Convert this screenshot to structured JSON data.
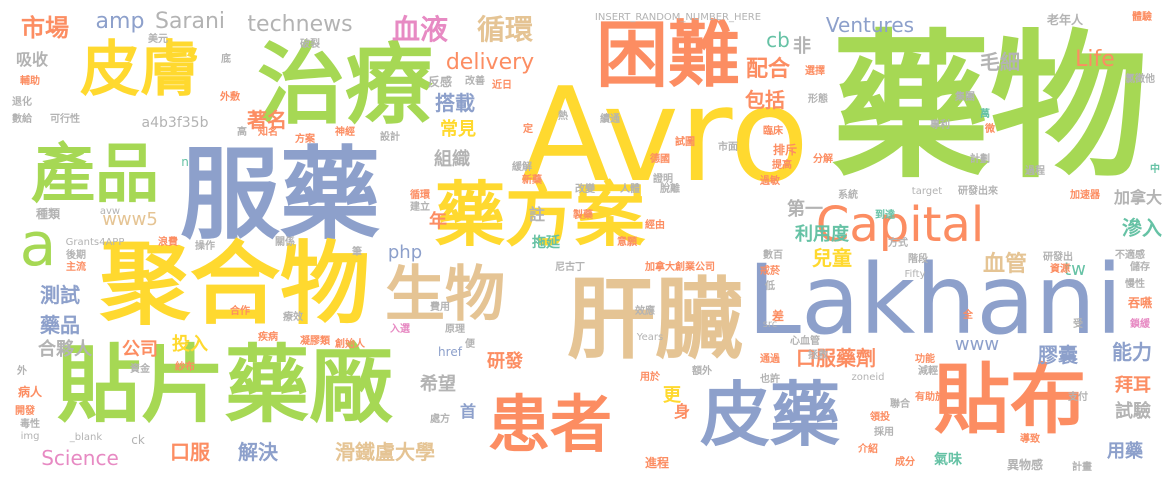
{
  "palette": {
    "green": "#a6d854",
    "orange": "#fc8d62",
    "yellow": "#ffd92f",
    "blue": "#8da0cb",
    "tan": "#e5c494",
    "pink": "#e78ac3",
    "teal": "#66c2a5",
    "gray": "#b3b3b3"
  },
  "words": [
    {
      "text": "藥物",
      "color": "green",
      "emphasis": 1.0
    },
    {
      "text": "Avro",
      "color": "yellow",
      "emphasis": 0.9
    },
    {
      "text": "Lakhani",
      "color": "blue",
      "emphasis": 0.85
    },
    {
      "text": "服藥",
      "color": "blue",
      "emphasis": 0.85
    },
    {
      "text": "聚合物",
      "color": "yellow",
      "emphasis": 0.85
    },
    {
      "text": "治療",
      "color": "green",
      "emphasis": 0.8
    },
    {
      "text": "貼片藥廠",
      "color": "green",
      "emphasis": 0.8
    },
    {
      "text": "肝臟",
      "color": "tan",
      "emphasis": 0.8
    },
    {
      "text": "藥方案",
      "color": "yellow",
      "emphasis": 0.8
    },
    {
      "text": "困難",
      "color": "orange",
      "emphasis": 0.7
    },
    {
      "text": "貼布",
      "color": "orange",
      "emphasis": 0.75
    },
    {
      "text": "皮藥",
      "color": "blue",
      "emphasis": 0.7
    },
    {
      "text": "皮膚",
      "color": "yellow",
      "emphasis": 0.7
    },
    {
      "text": "產品",
      "color": "green",
      "emphasis": 0.7
    },
    {
      "text": "患者",
      "color": "orange",
      "emphasis": 0.7
    },
    {
      "text": "生物",
      "color": "tan",
      "emphasis": 0.7
    },
    {
      "text": "Capital",
      "color": "orange",
      "emphasis": 0.55
    },
    {
      "text": "a",
      "color": "green",
      "emphasis": 0.6
    },
    {
      "text": "血液",
      "color": "pink",
      "emphasis": 0.3
    },
    {
      "text": "循環",
      "color": "tan",
      "emphasis": 0.3
    },
    {
      "text": "市場",
      "color": "orange",
      "emphasis": 0.2
    },
    {
      "text": "amp",
      "color": "blue",
      "emphasis": 0.2
    },
    {
      "text": "Sarani",
      "color": "gray",
      "emphasis": 0.2
    },
    {
      "text": "technews",
      "color": "gray",
      "emphasis": 0.2
    },
    {
      "text": "delivery",
      "color": "orange",
      "emphasis": 0.2
    },
    {
      "text": "cb",
      "color": "teal",
      "emphasis": 0.15
    },
    {
      "text": "非",
      "color": "gray",
      "emphasis": 0.15
    },
    {
      "text": "配合",
      "color": "orange",
      "emphasis": 0.15
    },
    {
      "text": "Ventures",
      "color": "blue",
      "emphasis": 0.2
    },
    {
      "text": "毛細",
      "color": "gray",
      "emphasis": 0.15
    },
    {
      "text": "Life",
      "color": "orange",
      "emphasis": 0.2
    },
    {
      "text": "包括",
      "color": "orange",
      "emphasis": 0.15
    },
    {
      "text": "搭載",
      "color": "blue",
      "emphasis": 0.15
    },
    {
      "text": "常見",
      "color": "yellow",
      "emphasis": 0.15
    },
    {
      "text": "組織",
      "color": "gray",
      "emphasis": 0.15
    },
    {
      "text": "著名",
      "color": "orange",
      "emphasis": 0.15
    },
    {
      "text": "a4b3f35b",
      "color": "gray",
      "emphasis": 0.1
    },
    {
      "text": "第一",
      "color": "gray",
      "emphasis": 0.15
    },
    {
      "text": "利用度",
      "color": "teal",
      "emphasis": 0.15
    },
    {
      "text": "兒童",
      "color": "yellow",
      "emphasis": 0.15
    },
    {
      "text": "加拿大",
      "color": "gray",
      "emphasis": 0.15
    },
    {
      "text": "滲入",
      "color": "teal",
      "emphasis": 0.15
    },
    {
      "text": "血管",
      "color": "tan",
      "emphasis": 0.15
    },
    {
      "text": "tw",
      "color": "teal",
      "emphasis": 0.15
    },
    {
      "text": "www5",
      "color": "tan",
      "emphasis": 0.15
    },
    {
      "text": "php",
      "color": "blue",
      "emphasis": 0.15
    },
    {
      "text": "年",
      "color": "orange",
      "emphasis": 0.15
    },
    {
      "text": "註",
      "color": "gray",
      "emphasis": 0.15
    },
    {
      "text": "拖延",
      "color": "teal",
      "emphasis": 0.15
    },
    {
      "text": "吸收",
      "color": "gray",
      "emphasis": 0.15
    },
    {
      "text": "測試",
      "color": "blue",
      "emphasis": 0.15
    },
    {
      "text": "藥品",
      "color": "blue",
      "emphasis": 0.15
    },
    {
      "text": "合夥人",
      "color": "gray",
      "emphasis": 0.15
    },
    {
      "text": "公司",
      "color": "orange",
      "emphasis": 0.15
    },
    {
      "text": "投入",
      "color": "yellow",
      "emphasis": 0.15
    },
    {
      "text": "研發",
      "color": "orange",
      "emphasis": 0.15
    },
    {
      "text": "希望",
      "color": "gray",
      "emphasis": 0.15
    },
    {
      "text": "www",
      "color": "blue",
      "emphasis": 0.15
    },
    {
      "text": "口服藥劑",
      "color": "orange",
      "emphasis": 0.15
    },
    {
      "text": "膠囊",
      "color": "blue",
      "emphasis": 0.15
    },
    {
      "text": "能力",
      "color": "blue",
      "emphasis": 0.15
    },
    {
      "text": "拜耳",
      "color": "orange",
      "emphasis": 0.15
    },
    {
      "text": "試驗",
      "color": "gray",
      "emphasis": 0.15
    },
    {
      "text": "更",
      "color": "yellow",
      "emphasis": 0.15
    },
    {
      "text": "身",
      "color": "orange",
      "emphasis": 0.15
    },
    {
      "text": "首",
      "color": "blue",
      "emphasis": 0.15
    },
    {
      "text": "Science",
      "color": "pink",
      "emphasis": 0.15
    },
    {
      "text": "口服",
      "color": "orange",
      "emphasis": 0.15
    },
    {
      "text": "解決",
      "color": "blue",
      "emphasis": 0.15
    },
    {
      "text": "滑鐵盧大學",
      "color": "tan",
      "emphasis": 0.15
    },
    {
      "text": "用藥",
      "color": "blue",
      "emphasis": 0.15
    },
    {
      "text": "INSERT_RANDOM_NUMBER_HERE",
      "color": "gray",
      "emphasis": 0.05
    },
    {
      "text": "老年人",
      "color": "gray",
      "emphasis": 0.05
    },
    {
      "text": "體驗",
      "color": "orange",
      "emphasis": 0.05
    },
    {
      "text": "氯徵他",
      "color": "gray",
      "emphasis": 0.05
    },
    {
      "text": "選擇",
      "color": "orange",
      "emphasis": 0.05
    },
    {
      "text": "形態",
      "color": "gray",
      "emphasis": 0.05
    },
    {
      "text": "集團",
      "color": "gray",
      "emphasis": 0.05
    },
    {
      "text": "萬",
      "color": "teal",
      "emphasis": 0.05
    },
    {
      "text": "微",
      "color": "orange",
      "emphasis": 0.05
    },
    {
      "text": "專利",
      "color": "gray",
      "emphasis": 0.05
    },
    {
      "text": "臨床",
      "color": "orange",
      "emphasis": 0.05
    },
    {
      "text": "試圖",
      "color": "orange",
      "emphasis": 0.05
    },
    {
      "text": "德國",
      "color": "orange",
      "emphasis": 0.05
    },
    {
      "text": "證明",
      "color": "gray",
      "emphasis": 0.05
    },
    {
      "text": "市面",
      "color": "gray",
      "emphasis": 0.05
    },
    {
      "text": "排斥",
      "color": "orange",
      "emphasis": 0.05
    },
    {
      "text": "提高",
      "color": "orange",
      "emphasis": 0.05
    },
    {
      "text": "過敏",
      "color": "orange",
      "emphasis": 0.05
    },
    {
      "text": "分解",
      "color": "orange",
      "emphasis": 0.05
    },
    {
      "text": "計劃",
      "color": "gray",
      "emphasis": 0.05
    },
    {
      "text": "過程",
      "color": "gray",
      "emphasis": 0.05
    },
    {
      "text": "系統",
      "color": "gray",
      "emphasis": 0.05
    },
    {
      "text": "中",
      "color": "teal",
      "emphasis": 0.05
    },
    {
      "text": "加速器",
      "color": "orange",
      "emphasis": 0.05
    },
    {
      "text": "target",
      "color": "gray",
      "emphasis": 0.05
    },
    {
      "text": "研發出來",
      "color": "gray",
      "emphasis": 0.05
    },
    {
      "text": "到達",
      "color": "teal",
      "emphasis": 0.05
    },
    {
      "text": "方式",
      "color": "gray",
      "emphasis": 0.05
    },
    {
      "text": "不適感",
      "color": "gray",
      "emphasis": 0.05
    },
    {
      "text": "研發出",
      "color": "gray",
      "emphasis": 0.05
    },
    {
      "text": "資源",
      "color": "orange",
      "emphasis": 0.05
    },
    {
      "text": "慢性",
      "color": "gray",
      "emphasis": 0.05
    },
    {
      "text": "儲存",
      "color": "gray",
      "emphasis": 0.05
    },
    {
      "text": "吞嚥",
      "color": "orange",
      "emphasis": 0.05
    },
    {
      "text": "鎖緩",
      "color": "pink",
      "emphasis": 0.05
    },
    {
      "text": "受",
      "color": "gray",
      "emphasis": 0.05
    },
    {
      "text": "美元",
      "color": "gray",
      "emphasis": 0.05
    },
    {
      "text": "破裂",
      "color": "gray",
      "emphasis": 0.05
    },
    {
      "text": "底",
      "color": "gray",
      "emphasis": 0.05
    },
    {
      "text": "輔助",
      "color": "orange",
      "emphasis": 0.05
    },
    {
      "text": "外敷",
      "color": "orange",
      "emphasis": 0.05
    },
    {
      "text": "反感",
      "color": "gray",
      "emphasis": 0.05
    },
    {
      "text": "改善",
      "color": "gray",
      "emphasis": 0.05
    },
    {
      "text": "近日",
      "color": "orange",
      "emphasis": 0.05
    },
    {
      "text": "退化",
      "color": "gray",
      "emphasis": 0.05
    },
    {
      "text": "數給",
      "color": "gray",
      "emphasis": 0.05
    },
    {
      "text": "可行性",
      "color": "gray",
      "emphasis": 0.05
    },
    {
      "text": "高",
      "color": "gray",
      "emphasis": 0.05
    },
    {
      "text": "知名",
      "color": "orange",
      "emphasis": 0.05
    },
    {
      "text": "方案",
      "color": "orange",
      "emphasis": 0.05
    },
    {
      "text": "神經",
      "color": "orange",
      "emphasis": 0.05
    },
    {
      "text": "設計",
      "color": "gray",
      "emphasis": 0.05
    },
    {
      "text": "熱",
      "color": "gray",
      "emphasis": 0.05
    },
    {
      "text": "續通",
      "color": "gray",
      "emphasis": 0.05
    },
    {
      "text": "定",
      "color": "orange",
      "emphasis": 0.05
    },
    {
      "text": "緩解",
      "color": "gray",
      "emphasis": 0.05
    },
    {
      "text": "n",
      "color": "teal",
      "emphasis": 0.05
    },
    {
      "text": "新藥",
      "color": "orange",
      "emphasis": 0.05
    },
    {
      "text": "改變",
      "color": "gray",
      "emphasis": 0.05
    },
    {
      "text": "人體",
      "color": "gray",
      "emphasis": 0.05
    },
    {
      "text": "脫離",
      "color": "gray",
      "emphasis": 0.05
    },
    {
      "text": "循環",
      "color": "orange",
      "emphasis": 0.05
    },
    {
      "text": "建立",
      "color": "gray",
      "emphasis": 0.05
    },
    {
      "text": "製藥",
      "color": "orange",
      "emphasis": 0.05
    },
    {
      "text": "經由",
      "color": "orange",
      "emphasis": 0.05
    },
    {
      "text": "種類",
      "color": "gray",
      "emphasis": 0.05
    },
    {
      "text": "avw",
      "color": "gray",
      "emphasis": 0.05
    },
    {
      "text": "Grants4APP",
      "color": "gray",
      "emphasis": 0.05
    },
    {
      "text": "浪費",
      "color": "orange",
      "emphasis": 0.05
    },
    {
      "text": "操作",
      "color": "gray",
      "emphasis": 0.05
    },
    {
      "text": "關係",
      "color": "gray",
      "emphasis": 0.05
    },
    {
      "text": "筆",
      "color": "gray",
      "emphasis": 0.05
    },
    {
      "text": "意願",
      "color": "orange",
      "emphasis": 0.05
    },
    {
      "text": "後期",
      "color": "gray",
      "emphasis": 0.05
    },
    {
      "text": "主流",
      "color": "orange",
      "emphasis": 0.05
    },
    {
      "text": "數百",
      "color": "gray",
      "emphasis": 0.05
    },
    {
      "text": "戒菸",
      "color": "orange",
      "emphasis": 0.05
    },
    {
      "text": "階段",
      "color": "gray",
      "emphasis": 0.05
    },
    {
      "text": "Fifty",
      "color": "gray",
      "emphasis": 0.05
    },
    {
      "text": "尼古丁",
      "color": "gray",
      "emphasis": 0.05
    },
    {
      "text": "加拿大創業公司",
      "color": "orange",
      "emphasis": 0.05
    },
    {
      "text": "低",
      "color": "gray",
      "emphasis": 0.05
    },
    {
      "text": "差",
      "color": "orange",
      "emphasis": 0.05
    },
    {
      "text": "src",
      "color": "gray",
      "emphasis": 0.05
    },
    {
      "text": "全",
      "color": "orange",
      "emphasis": 0.05
    },
    {
      "text": "合作",
      "color": "orange",
      "emphasis": 0.05
    },
    {
      "text": "療效",
      "color": "gray",
      "emphasis": 0.05
    },
    {
      "text": "費用",
      "color": "gray",
      "emphasis": 0.05
    },
    {
      "text": "效應",
      "color": "gray",
      "emphasis": 0.05
    },
    {
      "text": "疾病",
      "color": "orange",
      "emphasis": 0.05
    },
    {
      "text": "入選",
      "color": "pink",
      "emphasis": 0.05
    },
    {
      "text": "原理",
      "color": "gray",
      "emphasis": 0.05
    },
    {
      "text": "凝膠類",
      "color": "orange",
      "emphasis": 0.05
    },
    {
      "text": "創始人",
      "color": "orange",
      "emphasis": 0.05
    },
    {
      "text": "便",
      "color": "gray",
      "emphasis": 0.05
    },
    {
      "text": "Years",
      "color": "gray",
      "emphasis": 0.05
    },
    {
      "text": "心血管",
      "color": "gray",
      "emphasis": 0.05
    },
    {
      "text": "拯救",
      "color": "gray",
      "emphasis": 0.05
    },
    {
      "text": "功能",
      "color": "orange",
      "emphasis": 0.05
    },
    {
      "text": "資金",
      "color": "gray",
      "emphasis": 0.05
    },
    {
      "text": "紗布",
      "color": "orange",
      "emphasis": 0.05
    },
    {
      "text": "外",
      "color": "gray",
      "emphasis": 0.05
    },
    {
      "text": "病人",
      "color": "orange",
      "emphasis": 0.05
    },
    {
      "text": "開發",
      "color": "orange",
      "emphasis": 0.05
    },
    {
      "text": "毒性",
      "color": "gray",
      "emphasis": 0.05
    },
    {
      "text": "img",
      "color": "gray",
      "emphasis": 0.05
    },
    {
      "text": "_blank",
      "color": "gray",
      "emphasis": 0.05
    },
    {
      "text": "ck",
      "color": "gray",
      "emphasis": 0.05
    },
    {
      "text": "href",
      "color": "blue",
      "emphasis": 0.05
    },
    {
      "text": "處方",
      "color": "gray",
      "emphasis": 0.05
    },
    {
      "text": "用於",
      "color": "orange",
      "emphasis": 0.05
    },
    {
      "text": "額外",
      "color": "gray",
      "emphasis": 0.05
    },
    {
      "text": "也許",
      "color": "gray",
      "emphasis": 0.05
    },
    {
      "text": "通過",
      "color": "orange",
      "emphasis": 0.05
    },
    {
      "text": "zoneid",
      "color": "gray",
      "emphasis": 0.05
    },
    {
      "text": "減輕",
      "color": "gray",
      "emphasis": 0.05
    },
    {
      "text": "有助於",
      "color": "orange",
      "emphasis": 0.05
    },
    {
      "text": "聯合",
      "color": "gray",
      "emphasis": 0.05
    },
    {
      "text": "支付",
      "color": "gray",
      "emphasis": 0.05
    },
    {
      "text": "領投",
      "color": "orange",
      "emphasis": 0.05
    },
    {
      "text": "採用",
      "color": "gray",
      "emphasis": 0.05
    },
    {
      "text": "介紹",
      "color": "orange",
      "emphasis": 0.05
    },
    {
      "text": "成分",
      "color": "orange",
      "emphasis": 0.05
    },
    {
      "text": "氣味",
      "color": "teal",
      "emphasis": 0.05
    },
    {
      "text": "異物感",
      "color": "gray",
      "emphasis": 0.05
    },
    {
      "text": "導致",
      "color": "orange",
      "emphasis": 0.05
    },
    {
      "text": "計畫",
      "color": "gray",
      "emphasis": 0.05
    },
    {
      "text": "進程",
      "color": "orange",
      "emphasis": 0.05
    }
  ]
}
